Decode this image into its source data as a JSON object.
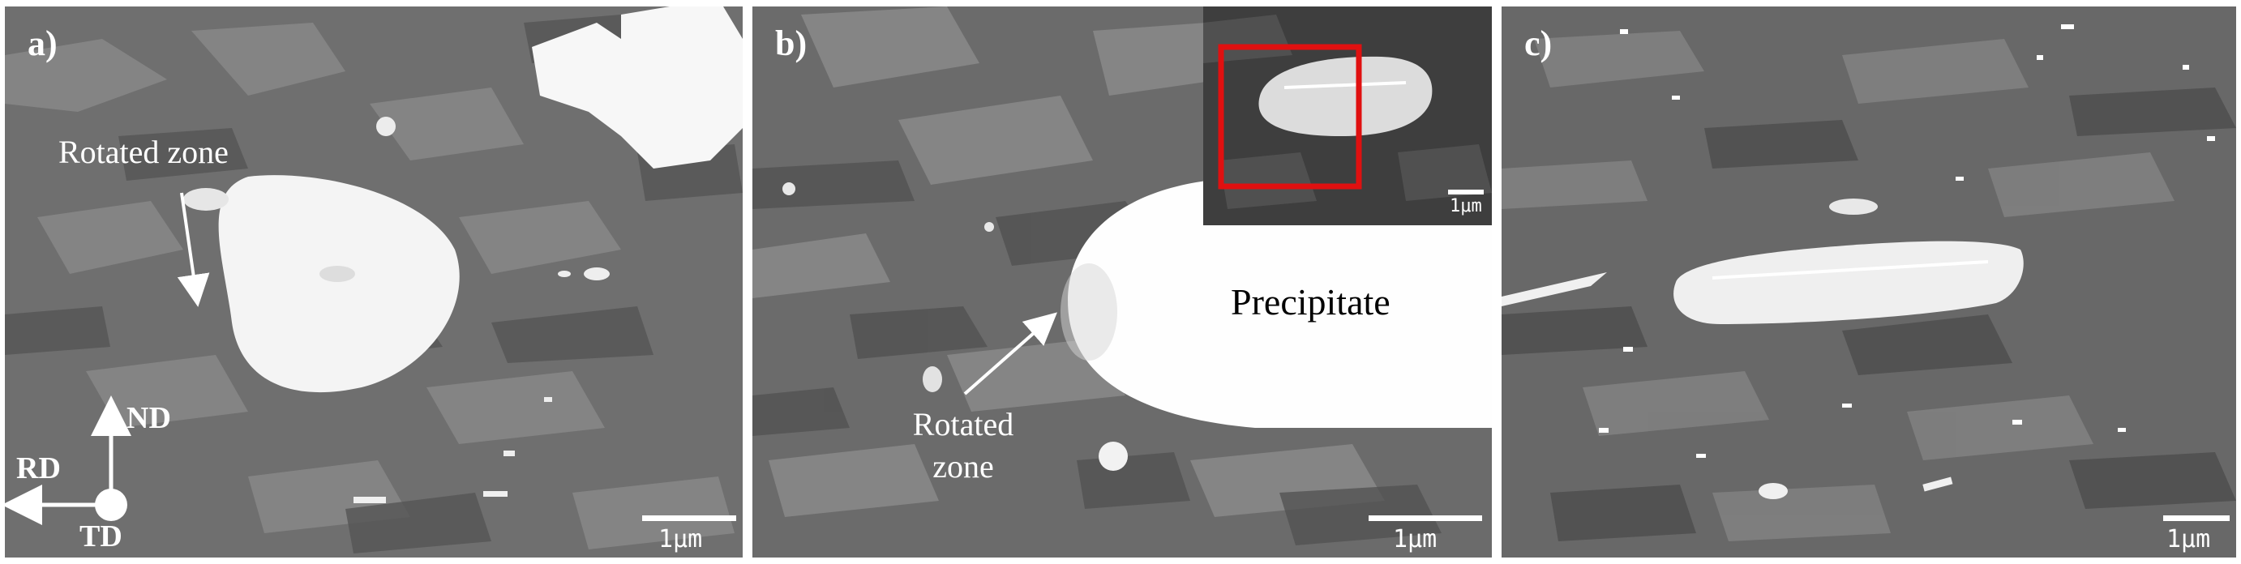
{
  "panels": {
    "a": {
      "label": "a)",
      "annotation": "Rotated zone",
      "scale_label": "1μm",
      "axes": {
        "nd": "ND",
        "rd": "RD",
        "td": "TD"
      }
    },
    "b": {
      "label": "b)",
      "precipitate_label": "Precipitate",
      "annotation_line1": "Rotated",
      "annotation_line2": "zone",
      "scale_label": "1μm",
      "inset_scale_label": "1μm",
      "highlight_color": "#e01010"
    },
    "c": {
      "label": "c)",
      "scale_label": "1μm"
    }
  }
}
